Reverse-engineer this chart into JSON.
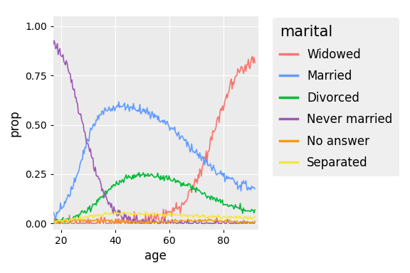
{
  "title": "marital",
  "xlabel": "age",
  "ylabel": "prop",
  "xlim": [
    17,
    93
  ],
  "ylim": [
    -0.03,
    1.05
  ],
  "xticks": [
    20,
    40,
    60,
    80
  ],
  "yticks": [
    0.0,
    0.25,
    0.5,
    0.75,
    1.0
  ],
  "plot_bg_color": "#EBEBEB",
  "fig_bg_color": "#FFFFFF",
  "grid_color": "#FFFFFF",
  "series": [
    {
      "name": "Widowed",
      "color": "#F8766D",
      "pattern": "widowed"
    },
    {
      "name": "Married",
      "color": "#619CFF",
      "pattern": "married"
    },
    {
      "name": "Divorced",
      "color": "#00BA38",
      "pattern": "divorced"
    },
    {
      "name": "Never married",
      "color": "#9B59B6",
      "pattern": "never_married"
    },
    {
      "name": "No answer",
      "color": "#F39C12",
      "pattern": "no_answer"
    },
    {
      "name": "Separated",
      "color": "#F5E642",
      "pattern": "separated"
    }
  ],
  "line_width": 1.2,
  "title_fontsize": 15,
  "axis_label_fontsize": 12,
  "tick_fontsize": 10,
  "legend_fontsize": 12,
  "noise_seed": 123
}
